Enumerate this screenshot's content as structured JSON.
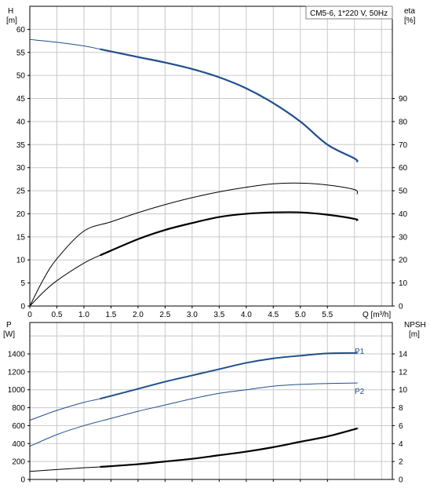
{
  "chart_data": [
    {
      "type": "line",
      "name": "top-chart",
      "title": "CM5-6, 1*220 V, 50Hz",
      "xlabel": "Q [m³/h]",
      "ylabel_left": [
        "H",
        "[m]"
      ],
      "ylabel_right": [
        "eta",
        "[%]"
      ],
      "xlim": [
        0,
        6.7
      ],
      "ylim_left": [
        0,
        65
      ],
      "ylim_right": [
        0,
        130
      ],
      "x_ticks": [
        0,
        0.5,
        1.0,
        1.5,
        2.0,
        2.5,
        3.0,
        3.5,
        4.0,
        4.5,
        5.0,
        5.5
      ],
      "y_left_ticks": [
        0,
        5,
        10,
        15,
        20,
        25,
        30,
        35,
        40,
        45,
        50,
        55,
        60
      ],
      "y_right_ticks": [
        0,
        10,
        20,
        30,
        40,
        50,
        60,
        70,
        80,
        90
      ],
      "grid": true,
      "series": [
        {
          "key": "H",
          "color": "#1f4e8c",
          "axis": "left",
          "x": [
            0,
            0.5,
            1.0,
            1.3,
            2.0,
            2.5,
            3.0,
            3.5,
            4.0,
            4.5,
            5.0,
            5.5,
            6.0,
            6.05
          ],
          "values": [
            57.8,
            57.2,
            56.4,
            55.7,
            54.0,
            52.8,
            51.4,
            49.6,
            47.2,
            44.0,
            40.0,
            35.0,
            32.0,
            31.2
          ]
        },
        {
          "key": "eta",
          "color": "#000000",
          "axis": "right",
          "x": [
            0,
            0.25,
            0.5,
            1.0,
            1.5,
            2.0,
            2.5,
            3.0,
            3.5,
            4.0,
            4.5,
            5.0,
            5.5,
            6.0,
            6.05
          ],
          "values": [
            0,
            11.5,
            20.5,
            32.5,
            36.5,
            40.5,
            44.0,
            47.0,
            49.5,
            51.5,
            53.0,
            53.3,
            52.5,
            50.5,
            48.5
          ]
        },
        {
          "key": "eta-pump",
          "color": "#000000",
          "axis": "left",
          "x": [
            0,
            0.25,
            0.5,
            1.0,
            1.3,
            2.0,
            2.5,
            3.0,
            3.5,
            4.0,
            4.5,
            5.0,
            5.5,
            6.0,
            6.05
          ],
          "values": [
            0,
            3.0,
            5.5,
            9.3,
            11.0,
            14.5,
            16.5,
            18.0,
            19.3,
            20.0,
            20.3,
            20.3,
            19.8,
            18.9,
            18.5
          ]
        }
      ]
    },
    {
      "type": "line",
      "name": "bottom-chart",
      "xlim": [
        0,
        6.7
      ],
      "ylim_left": [
        0,
        1750
      ],
      "ylim_right": [
        0,
        17.5
      ],
      "ylabel_left": [
        "P",
        "[W]"
      ],
      "ylabel_right": [
        "NPSH",
        "[m]"
      ],
      "y_left_ticks": [
        0,
        200,
        400,
        600,
        800,
        1000,
        1200,
        1400
      ],
      "y_right_ticks": [
        0,
        2,
        4,
        6,
        8,
        10,
        12,
        14
      ],
      "grid": true,
      "series": [
        {
          "name": "P1",
          "color": "#1f4e8c",
          "axis": "left",
          "x": [
            0,
            0.5,
            1.0,
            1.3,
            2.0,
            2.5,
            3.0,
            3.5,
            4.0,
            4.5,
            5.0,
            5.5,
            6.0,
            6.05
          ],
          "values": [
            660,
            770,
            860,
            900,
            1010,
            1090,
            1160,
            1230,
            1300,
            1350,
            1380,
            1405,
            1410,
            1410
          ]
        },
        {
          "name": "P2",
          "color": "#1f4e8c",
          "axis": "left",
          "x": [
            0,
            0.5,
            1.0,
            1.5,
            2.0,
            2.5,
            3.0,
            3.5,
            4.0,
            4.5,
            5.0,
            5.5,
            6.0,
            6.05
          ],
          "values": [
            370,
            500,
            600,
            680,
            760,
            830,
            900,
            960,
            1000,
            1040,
            1060,
            1070,
            1075,
            1075
          ]
        },
        {
          "key": "NPSH",
          "color": "#000000",
          "axis": "right",
          "x": [
            0,
            0.5,
            1.0,
            1.3,
            2.0,
            2.5,
            3.0,
            3.5,
            4.0,
            4.5,
            5.0,
            5.5,
            6.0,
            6.05
          ],
          "values": [
            0.9,
            1.1,
            1.3,
            1.4,
            1.7,
            2.0,
            2.3,
            2.7,
            3.1,
            3.6,
            4.2,
            4.8,
            5.6,
            5.7
          ]
        }
      ]
    }
  ]
}
